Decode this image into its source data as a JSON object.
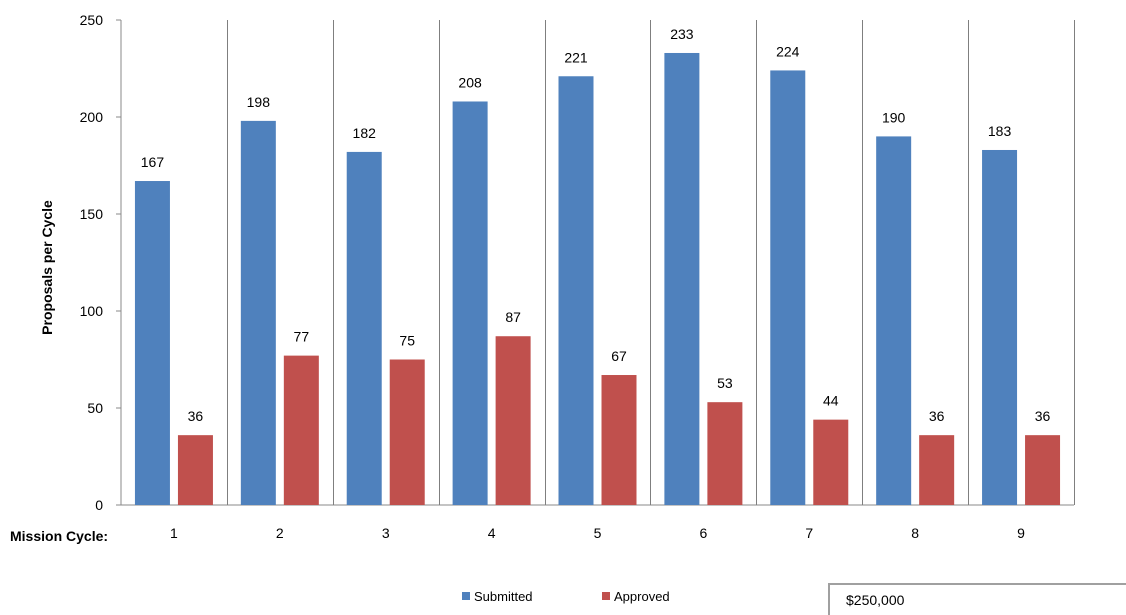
{
  "chart_data": {
    "type": "bar",
    "title": "",
    "ylabel": "Proposals per Cycle",
    "xlabel_prefix": "Mission Cycle:",
    "ylim": [
      0,
      250
    ],
    "yticks": [
      0,
      50,
      100,
      150,
      200,
      250
    ],
    "categories": [
      "1",
      "2",
      "3",
      "4",
      "5",
      "6",
      "7",
      "8",
      "9"
    ],
    "series": [
      {
        "name": "Submitted",
        "color": "#4f81bd",
        "values": [
          167,
          198,
          182,
          208,
          221,
          233,
          224,
          190,
          183
        ]
      },
      {
        "name": "Approved",
        "color": "#c0504d",
        "values": [
          36,
          77,
          75,
          87,
          67,
          53,
          44,
          36,
          36
        ]
      }
    ],
    "grid": "vertical-category-separators",
    "legend_position": "bottom"
  },
  "inset": {
    "label": "$250,000"
  }
}
